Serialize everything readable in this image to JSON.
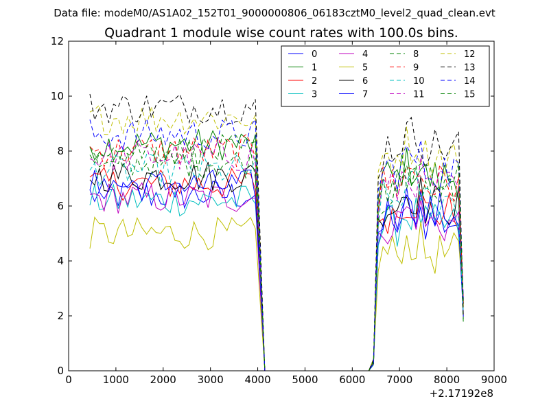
{
  "chart_data": {
    "type": "line",
    "suptitle": "Data file: modeM0/AS1A02_152T01_9000000806_06183cztM0_level2_quad_clean.evt",
    "title": "Quadrant 1 module wise count rates with 100.0s bins.",
    "xlabel": "",
    "ylabel": "",
    "x_offset_label": "+2.17192e8",
    "xlim": [
      0,
      9000
    ],
    "ylim": [
      0,
      12
    ],
    "xticks": [
      0,
      1000,
      2000,
      3000,
      4000,
      5000,
      6000,
      7000,
      8000,
      9000
    ],
    "yticks": [
      0,
      2,
      4,
      6,
      8,
      10,
      12
    ],
    "grid": false,
    "legend_placement": "top-right",
    "legend_columns": 4,
    "x": [
      450,
      550,
      650,
      750,
      850,
      950,
      1050,
      1150,
      1250,
      1350,
      1450,
      1550,
      1650,
      1750,
      1850,
      1950,
      2050,
      2150,
      2250,
      2350,
      2450,
      2550,
      2650,
      2750,
      2850,
      2950,
      3050,
      3150,
      3250,
      3350,
      3450,
      3550,
      3650,
      3750,
      3850,
      3950,
      4050,
      4150,
      4250,
      4350,
      4450,
      4550,
      4650,
      4750,
      4850,
      4950,
      5050,
      5150,
      5250,
      5350,
      5450,
      5550,
      5650,
      5750,
      5850,
      5950,
      6050,
      6150,
      6250,
      6350,
      6450,
      6550,
      6650,
      6750,
      6850,
      6950,
      7050,
      7150,
      7250,
      7350,
      7450,
      7550,
      7650,
      7750,
      7850,
      7950,
      8050,
      8150,
      8250,
      8350
    ],
    "series": [
      {
        "name": "0",
        "color": "#0000ff",
        "dash": "solid",
        "level": 6.4
      },
      {
        "name": "1",
        "color": "#008000",
        "dash": "solid",
        "level": 8.25
      },
      {
        "name": "2",
        "color": "#ff0000",
        "dash": "solid",
        "level": 6.8
      },
      {
        "name": "3",
        "color": "#00bfbf",
        "dash": "solid",
        "level": 6.2
      },
      {
        "name": "4",
        "color": "#bf00bf",
        "dash": "solid",
        "level": 6.3
      },
      {
        "name": "5",
        "color": "#bfbf00",
        "dash": "solid",
        "level": 5.0
      },
      {
        "name": "6",
        "color": "#000000",
        "dash": "solid",
        "level": 7.1
      },
      {
        "name": "7",
        "color": "#0000ff",
        "dash": "solid",
        "level": 6.75
      },
      {
        "name": "8",
        "color": "#008000",
        "dash": "dashed",
        "level": 7.6
      },
      {
        "name": "9",
        "color": "#ff0000",
        "dash": "dashed",
        "level": 8.0
      },
      {
        "name": "10",
        "color": "#00bfbf",
        "dash": "dashed",
        "level": 7.3
      },
      {
        "name": "11",
        "color": "#bf00bf",
        "dash": "dashed",
        "level": 7.8
      },
      {
        "name": "12",
        "color": "#bfbf00",
        "dash": "dashed",
        "level": 9.2
      },
      {
        "name": "13",
        "color": "#000000",
        "dash": "dashed",
        "level": 9.6
      },
      {
        "name": "14",
        "color": "#0000ff",
        "dash": "dashed",
        "level": 8.6
      },
      {
        "name": "15",
        "color": "#008000",
        "dash": "dashed",
        "level": 8.0
      }
    ]
  }
}
